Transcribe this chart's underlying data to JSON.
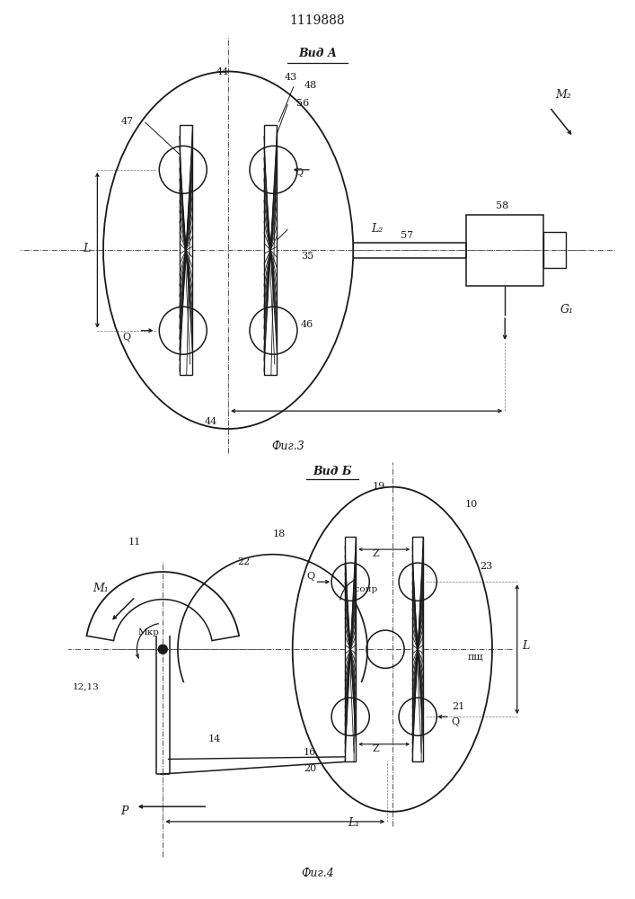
{
  "title": "1119888",
  "fig3_label": "Вид А",
  "fig4_label": "Вид Б",
  "fig3_caption": "Фиг.3",
  "fig4_caption": "Фиг.4",
  "line_color": "#1a1a1a"
}
